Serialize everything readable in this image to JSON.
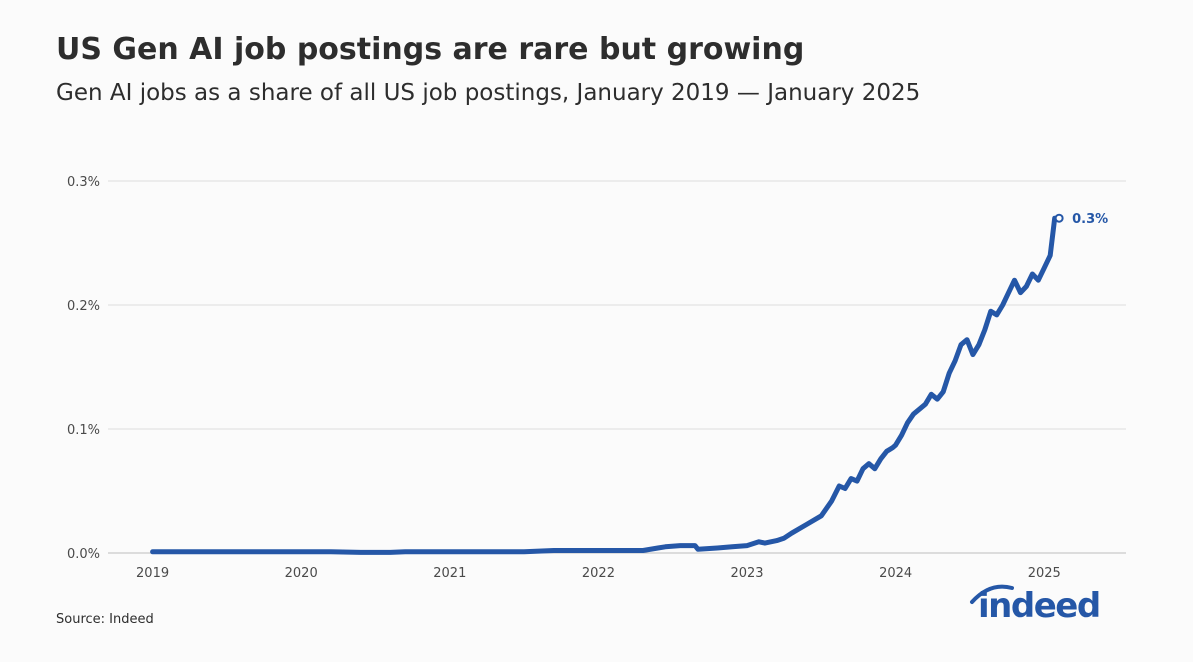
{
  "header": {
    "title": "US Gen AI job postings are rare but growing",
    "subtitle": "Gen AI jobs as a share of all US job postings, January 2019 — January 2025"
  },
  "footer": {
    "source": "Source: Indeed",
    "logo_text": "indeed"
  },
  "colors": {
    "line": "#2557a7",
    "grid": "#dddddd",
    "text": "#2d2d2d",
    "background": "#fbfbfb"
  },
  "chart_data": {
    "type": "line",
    "title": "US Gen AI job postings are rare but growing",
    "subtitle": "Gen AI jobs as a share of all US job postings, January 2019 — January 2025",
    "xlabel": "",
    "ylabel": "",
    "xlim": [
      2018.7,
      2025.55
    ],
    "ylim": [
      0,
      0.3
    ],
    "x_ticks": [
      2019,
      2020,
      2021,
      2022,
      2023,
      2024,
      2025
    ],
    "x_tick_labels": [
      "2019",
      "2020",
      "2021",
      "2022",
      "2023",
      "2024",
      "2025"
    ],
    "y_ticks": [
      0,
      0.1,
      0.2,
      0.3
    ],
    "y_tick_labels": [
      "0.0%",
      "0.1%",
      "0.2%",
      "0.3%"
    ],
    "grid": "horizontal",
    "legend": "none",
    "end_label": "0.3%",
    "series": [
      {
        "x": [
          2019.0,
          2019.3,
          2019.6,
          2019.9,
          2020.2,
          2020.4,
          2020.6,
          2020.7,
          2020.9,
          2021.1,
          2021.3,
          2021.5,
          2021.7,
          2021.9,
          2022.1,
          2022.3,
          2022.4,
          2022.45,
          2022.55,
          2022.65,
          2022.67,
          2022.8,
          2022.9,
          2023.0,
          2023.08,
          2023.12,
          2023.2,
          2023.25,
          2023.3,
          2023.4,
          2023.5,
          2023.57,
          2023.62,
          2023.66,
          2023.7,
          2023.74,
          2023.78,
          2023.82,
          2023.86,
          2023.9,
          2023.94,
          2023.98,
          2024.0,
          2024.04,
          2024.08,
          2024.12,
          2024.16,
          2024.2,
          2024.24,
          2024.28,
          2024.32,
          2024.36,
          2024.4,
          2024.44,
          2024.48,
          2024.52,
          2024.56,
          2024.6,
          2024.64,
          2024.68,
          2024.72,
          2024.76,
          2024.8,
          2024.84,
          2024.88,
          2024.92,
          2024.96,
          2025.0,
          2025.04,
          2025.07,
          2025.1
        ],
        "y": [
          0.001,
          0.001,
          0.001,
          0.001,
          0.001,
          0.0005,
          0.0005,
          0.001,
          0.001,
          0.001,
          0.001,
          0.001,
          0.002,
          0.002,
          0.002,
          0.002,
          0.004,
          0.005,
          0.006,
          0.006,
          0.003,
          0.004,
          0.005,
          0.006,
          0.009,
          0.008,
          0.01,
          0.012,
          0.016,
          0.023,
          0.03,
          0.042,
          0.054,
          0.052,
          0.06,
          0.058,
          0.068,
          0.072,
          0.068,
          0.076,
          0.082,
          0.085,
          0.087,
          0.095,
          0.105,
          0.112,
          0.116,
          0.12,
          0.128,
          0.124,
          0.13,
          0.145,
          0.155,
          0.168,
          0.172,
          0.16,
          0.168,
          0.18,
          0.195,
          0.192,
          0.2,
          0.21,
          0.22,
          0.21,
          0.215,
          0.225,
          0.22,
          0.23,
          0.24,
          0.27,
          0.27
        ]
      }
    ]
  }
}
